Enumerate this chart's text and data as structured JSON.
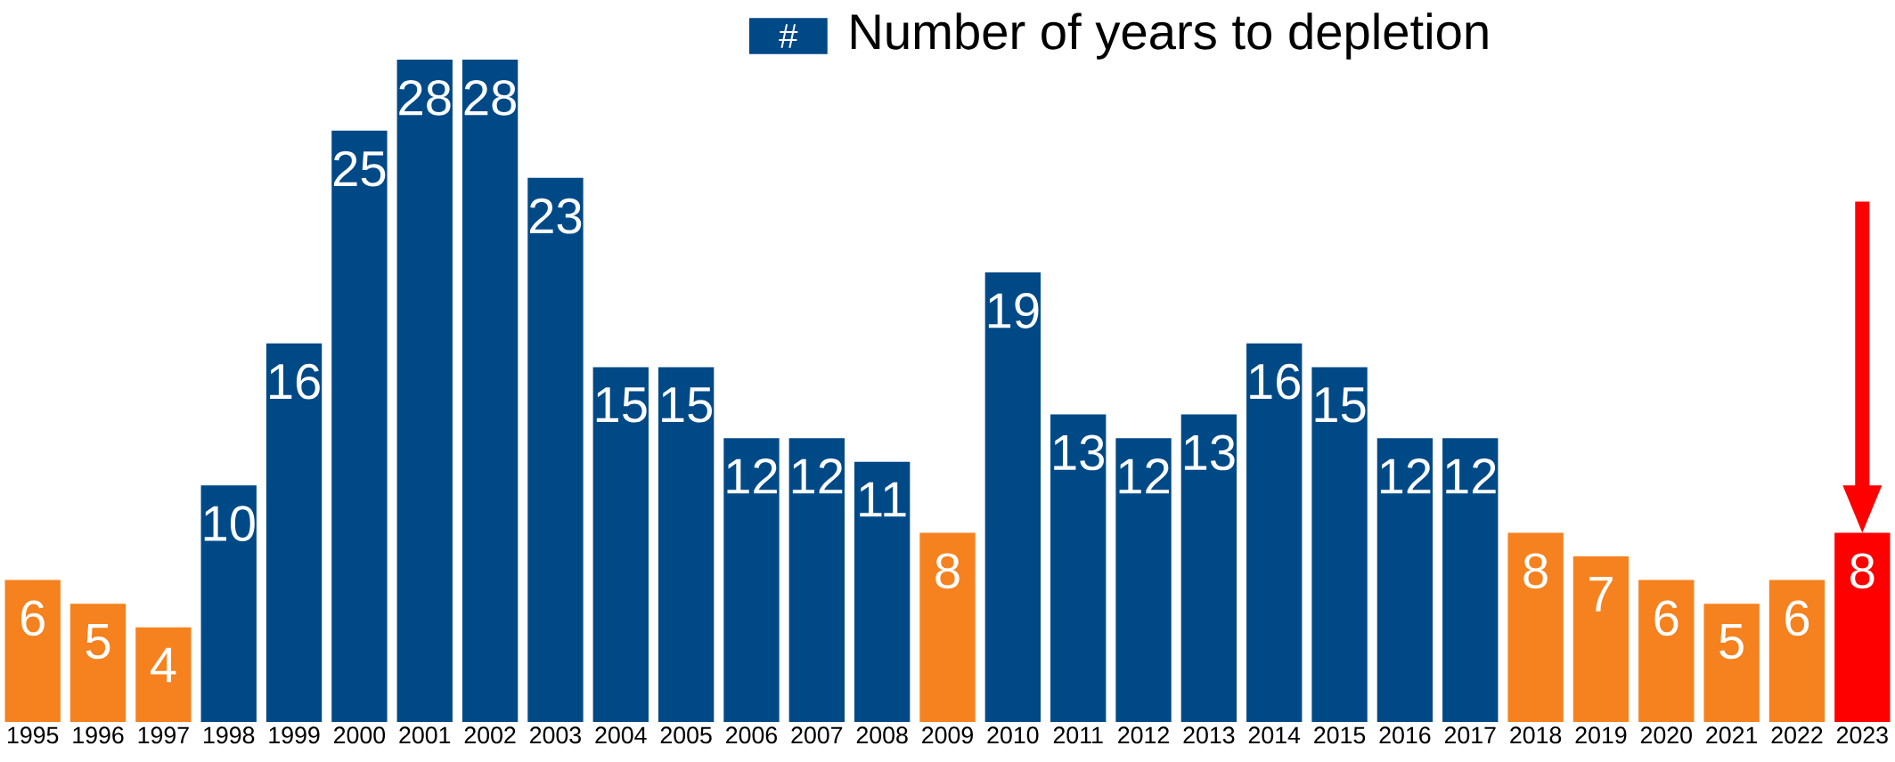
{
  "chart_data": {
    "type": "bar",
    "categories": [
      "1995",
      "1996",
      "1997",
      "1998",
      "1999",
      "2000",
      "2001",
      "2002",
      "2003",
      "2004",
      "2005",
      "2006",
      "2007",
      "2008",
      "2009",
      "2010",
      "2011",
      "2012",
      "2013",
      "2014",
      "2015",
      "2016",
      "2017",
      "2018",
      "2019",
      "2020",
      "2021",
      "2022",
      "2023"
    ],
    "series": [
      {
        "name": "Number of years to depletion",
        "color": "#004987",
        "values": [
          6,
          5,
          4,
          10,
          16,
          25,
          28,
          28,
          23,
          15,
          15,
          12,
          12,
          11,
          8,
          19,
          13,
          12,
          13,
          16,
          15,
          12,
          12,
          8,
          7,
          6,
          5,
          6,
          8
        ],
        "colors": [
          "#F5821F",
          "#F5821F",
          "#F5821F",
          "#004987",
          "#004987",
          "#004987",
          "#004987",
          "#004987",
          "#004987",
          "#004987",
          "#004987",
          "#004987",
          "#004987",
          "#004987",
          "#F5821F",
          "#004987",
          "#004987",
          "#004987",
          "#004987",
          "#004987",
          "#004987",
          "#004987",
          "#004987",
          "#F5821F",
          "#F5821F",
          "#F5821F",
          "#F5821F",
          "#F5821F",
          "#FF0000"
        ]
      }
    ],
    "data_labels": true,
    "legend": "top",
    "annotations": [
      "#"
    ]
  }
}
